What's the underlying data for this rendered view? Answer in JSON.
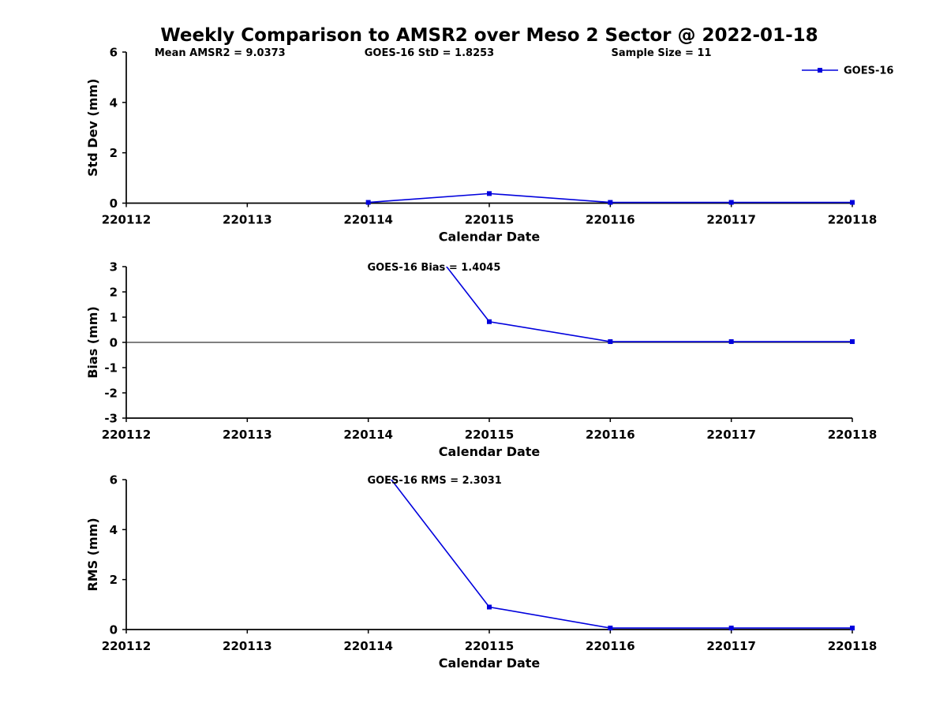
{
  "figure": {
    "title": "Weekly Comparison to AMSR2 over Meso 2 Sector @ 2022-01-18",
    "background": "#ffffff",
    "accent_color": "#0000dd",
    "axis_color": "#000000",
    "text_color": "#000000"
  },
  "legend": {
    "label": "GOES-16",
    "position": "top-right",
    "marker": "square"
  },
  "chart_data": [
    {
      "type": "line",
      "id": "std-dev-panel",
      "ylabel": "Std Dev (mm)",
      "xlabel": "Calendar Date",
      "x_ticks": [
        "220112",
        "220113",
        "220114",
        "220115",
        "220116",
        "220117",
        "220118"
      ],
      "x_range": [
        220112,
        220118
      ],
      "ylim": [
        0,
        6
      ],
      "y_ticks": [
        0,
        2,
        4,
        6
      ],
      "grid": false,
      "zero_line": false,
      "series": [
        {
          "name": "GOES-16",
          "x": [
            220114,
            220115,
            220116,
            220117,
            220118
          ],
          "y": [
            0.03,
            0.38,
            0.03,
            0.03,
            0.03
          ]
        }
      ],
      "annotations": [
        {
          "text": "Mean AMSR2 = 9.0373",
          "fx": 0.039,
          "fy": 0,
          "anchor": "start"
        },
        {
          "text": "GOES-16 StD = 1.8253",
          "fx": 0.328,
          "fy": 0,
          "anchor": "start"
        },
        {
          "text": "Sample Size = 11",
          "fx": 0.668,
          "fy": 0,
          "anchor": "start"
        }
      ]
    },
    {
      "type": "line",
      "id": "bias-panel",
      "ylabel": "Bias (mm)",
      "xlabel": "Calendar Date",
      "x_ticks": [
        "220112",
        "220113",
        "220114",
        "220115",
        "220116",
        "220117",
        "220118"
      ],
      "x_range": [
        220112,
        220118
      ],
      "ylim": [
        -3,
        3
      ],
      "y_ticks": [
        -3,
        -2,
        -1,
        0,
        1,
        2,
        3
      ],
      "grid": false,
      "zero_line": true,
      "series": [
        {
          "name": "GOES-16",
          "x": [
            220114,
            220115,
            220116,
            220117,
            220118
          ],
          "y": [
            7.0,
            0.82,
            0.03,
            0.03,
            0.03
          ],
          "note": "first point exceeds y-axis range; line enters clipped at top of axes"
        }
      ],
      "annotations": [
        {
          "text": "GOES-16 Bias  = 1.4045",
          "fx": 0.332,
          "fy": 0,
          "anchor": "start"
        }
      ]
    },
    {
      "type": "line",
      "id": "rms-panel",
      "ylabel": "RMS (mm)",
      "xlabel": "Calendar Date",
      "x_ticks": [
        "220112",
        "220113",
        "220114",
        "220115",
        "220116",
        "220117",
        "220118"
      ],
      "x_range": [
        220112,
        220118
      ],
      "ylim": [
        0,
        6
      ],
      "y_ticks": [
        0,
        2,
        4,
        6
      ],
      "grid": false,
      "zero_line": false,
      "series": [
        {
          "name": "GOES-16",
          "x": [
            220114,
            220115,
            220116,
            220117,
            220118
          ],
          "y": [
            7.2,
            0.9,
            0.06,
            0.06,
            0.06
          ],
          "note": "first point exceeds y-axis range; line enters clipped at top of axes"
        }
      ],
      "annotations": [
        {
          "text": "GOES-16 RMS = 2.3031",
          "fx": 0.332,
          "fy": 0,
          "anchor": "start"
        }
      ]
    }
  ]
}
